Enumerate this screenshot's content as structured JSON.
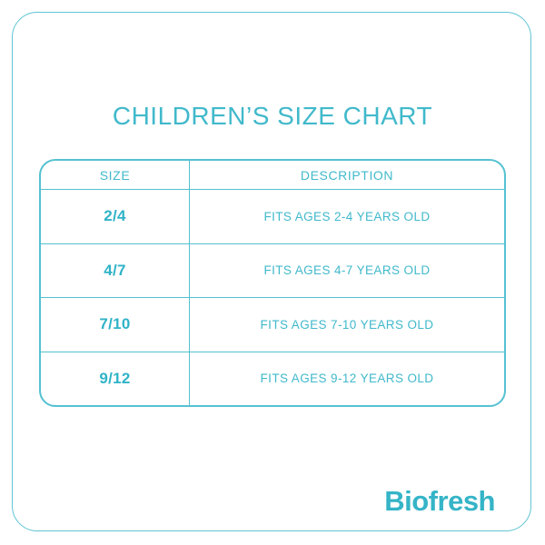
{
  "page": {
    "title": "CHILDREN’S SIZE CHART"
  },
  "table": {
    "headers": [
      "SIZE",
      "DESCRIPTION"
    ],
    "rows": [
      {
        "size": "2/4",
        "description": "FITS AGES 2-4 YEARS OLD"
      },
      {
        "size": "4/7",
        "description": "FITS AGES 4-7 YEARS OLD"
      },
      {
        "size": "7/10",
        "description": "FITS AGES 7-10 YEARS OLD"
      },
      {
        "size": "9/12",
        "description": "FITS AGES 9-12 YEARS OLD"
      }
    ]
  },
  "brand": {
    "name": "Biofresh"
  },
  "colors": {
    "accent_text": "#41b9cb",
    "accent_line": "#55c1d1",
    "accent_bold": "#2fb3c7",
    "background": "#ffffff"
  }
}
